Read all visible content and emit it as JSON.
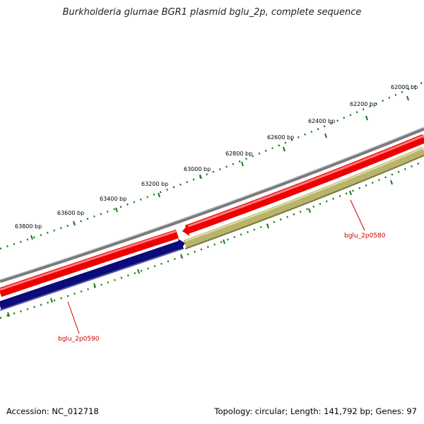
{
  "title": "Burkholderia glumae BGR1 plasmid bglu_2p, complete sequence",
  "footer": {
    "accession": "Accession: NC_012718",
    "summary": "Topology: circular; Length: 141,792 bp; Genes: 97"
  },
  "ticks": [
    {
      "label": "62000 bp",
      "bp": 62000
    },
    {
      "label": "62200 bp",
      "bp": 62200
    },
    {
      "label": "62400 bp",
      "bp": 62400
    },
    {
      "label": "62600 bp",
      "bp": 62600
    },
    {
      "label": "62800 bp",
      "bp": 62800
    },
    {
      "label": "63000 bp",
      "bp": 63000
    },
    {
      "label": "63200 bp",
      "bp": 63200
    },
    {
      "label": "63400 bp",
      "bp": 63400
    },
    {
      "label": "63600 bp",
      "bp": 63600
    },
    {
      "label": "63800 bp",
      "bp": 63800
    }
  ],
  "genes": [
    {
      "label": "bglu_2p0580"
    },
    {
      "label": "bglu_2p0590"
    }
  ],
  "colors": {
    "backbone": "#7a7a7a",
    "forward_strand": "#ee0000",
    "reverse_strand_1": "#0b0b7a",
    "reverse_strand_2": "#b8b46a",
    "ticks": "#1a7a1a",
    "gene_label": "#cc0000"
  }
}
